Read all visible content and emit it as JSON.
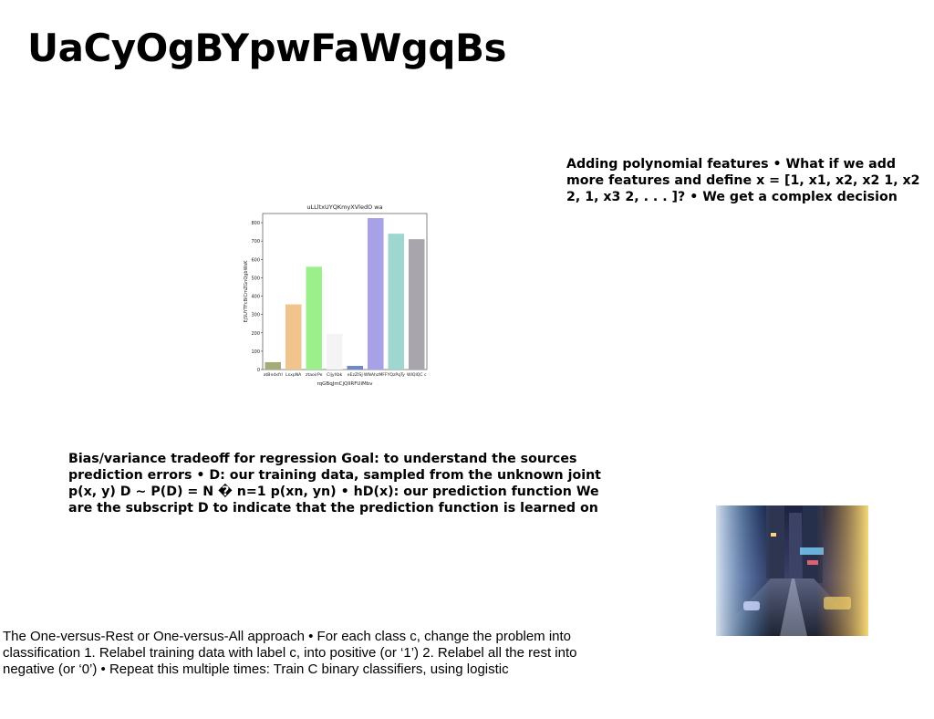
{
  "slide": {
    "title": "UaCyOgBYpwFaWgqBs",
    "paragraphs": {
      "poly": "Adding polynomial features • What if we add more features and define x = [1, x1, x2, x2 1, x2 2, 1, x3 2, . . . ]? • We get a complex decision",
      "bias": "Bias/variance tradeoff for regression Goal: to understand the sources prediction errors • D: our training data, sampled from the unknown joint p(x, y) D ∼ P(D) = N � n=1 p(xn, yn) • hD(x): our prediction function We are the subscript D to indicate that the prediction function is learned on",
      "ovr": "The One-versus-Rest or One-versus-All approach • For each class c, change the problem into classification 1. Relabel training data with label c, into positive (or ‘1’) 2. Relabel all the rest into negative (or ‘0’) • Repeat this multiple times: Train C binary classifiers, using logistic"
    },
    "photo_label": "city street at night with motion-blurred traffic lights"
  },
  "chart_data": {
    "type": "bar",
    "title": "uLLltxUYQKmyXVledO wa",
    "xlabel": "rqGBqJmCjQllRFUiMbv",
    "ylabel": "EjSUYTFcBiCmZGnQgbWsK",
    "categories": [
      "atBndxfrl",
      "LsxpNA",
      "ztaoirPe",
      "CljyXbk",
      "eEzZISJ",
      "WNAhzMFF",
      "YQzPqTy",
      "WIQlQC c"
    ],
    "values": [
      40,
      355,
      560,
      195,
      20,
      825,
      740,
      710
    ],
    "colors": [
      "#a3ab78",
      "#f2c48d",
      "#9cf08c",
      "#f4f4f4",
      "#6c8ac9",
      "#a7a2e8",
      "#9ed6d0",
      "#a9a5ad"
    ],
    "ylim": [
      0,
      850
    ],
    "yticks": [
      0,
      100,
      200,
      300,
      400,
      500,
      600,
      700,
      800
    ]
  }
}
